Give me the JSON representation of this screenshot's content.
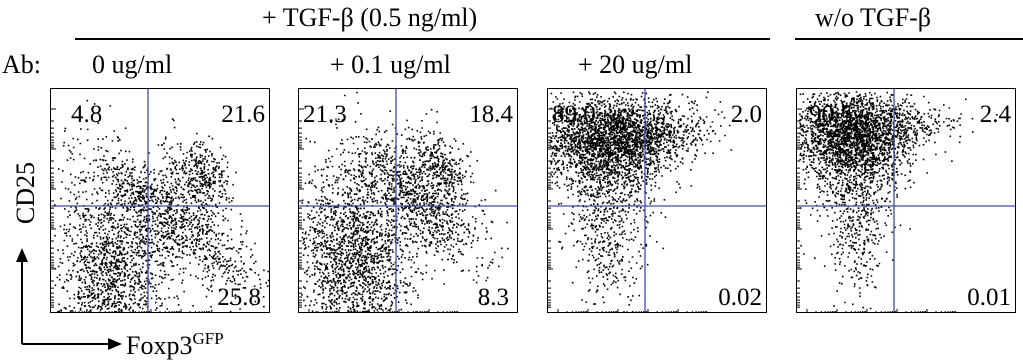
{
  "header": {
    "tgf_group": "+ TGF-β (0.5 ng/ml)",
    "no_tgf": "w/o TGF-β",
    "ab_label": "Ab:"
  },
  "conditions": [
    "0 ug/ml",
    "+ 0.1 ug/ml",
    "+ 20 ug/ml"
  ],
  "axes": {
    "y_label": "CD25",
    "x_label_main": "Foxp3",
    "x_label_sup": "GFP"
  },
  "panels": [
    {
      "ul": "4.8",
      "ur": "21.6",
      "lr": "25.8"
    },
    {
      "ul": "21.3",
      "ur": "18.4",
      "lr": "8.3"
    },
    {
      "ul": "89.0",
      "ur": "2.0",
      "lr": "0.02"
    },
    {
      "ul": "90.5",
      "ur": "2.4",
      "lr": "0.01"
    }
  ],
  "colors": {
    "gate_line": "#3a4fb0",
    "dots": "#000000"
  }
}
